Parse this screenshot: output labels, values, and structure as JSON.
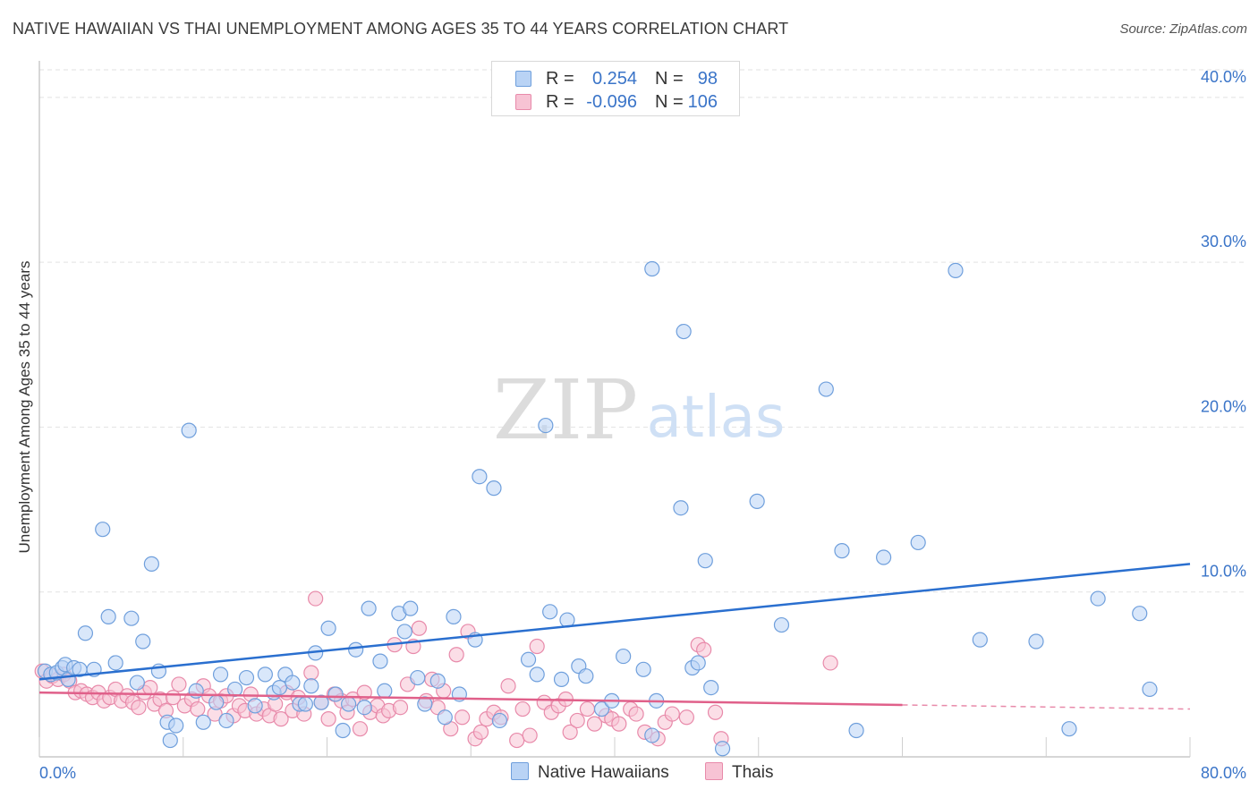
{
  "title": "NATIVE HAWAIIAN VS THAI UNEMPLOYMENT AMONG AGES 35 TO 44 YEARS CORRELATION CHART",
  "source": "Source: ZipAtlas.com",
  "watermark": {
    "part1": "ZIP",
    "part2": "atlas"
  },
  "colors": {
    "blue_fill": "#b9d3f5",
    "blue_stroke": "#6f9fdc",
    "blue_line": "#2a6fcf",
    "pink_fill": "#f7c3d4",
    "pink_stroke": "#e88aaa",
    "pink_line": "#e0608a",
    "axis_label": "#3a74c8",
    "grid": "#e2e2e2"
  },
  "legend_top": {
    "rows": [
      {
        "r_label": "R =",
        "r_value": "0.254",
        "n_label": "N =",
        "n_value": "98"
      },
      {
        "r_label": "R =",
        "r_value": "-0.096",
        "n_label": "N =",
        "n_value": "106"
      }
    ]
  },
  "legend_bottom": {
    "items": [
      "Native Hawaiians",
      "Thais"
    ]
  },
  "chart_data": {
    "type": "scatter",
    "title": "NATIVE HAWAIIAN VS THAI UNEMPLOYMENT AMONG AGES 35 TO 44 YEARS CORRELATION CHART",
    "xlabel": "",
    "ylabel": "Unemployment Among Ages 35 to 44 years",
    "xlim": [
      0,
      80
    ],
    "ylim": [
      0,
      42
    ],
    "x_tick_labels": [
      "0.0%",
      "80.0%"
    ],
    "y_ticks": [
      10,
      20,
      30,
      40
    ],
    "y_tick_labels": [
      "10.0%",
      "20.0%",
      "30.0%",
      "40.0%"
    ],
    "grid": true,
    "legend_position": "bottom",
    "series": [
      {
        "name": "Native Hawaiians",
        "trend": {
          "x": [
            0,
            80
          ],
          "y": [
            4.7,
            11.7
          ]
        },
        "points": [
          [
            0.4,
            5.2
          ],
          [
            0.8,
            5.0
          ],
          [
            1.2,
            5.1
          ],
          [
            1.6,
            5.4
          ],
          [
            1.8,
            5.6
          ],
          [
            2.0,
            4.7
          ],
          [
            2.4,
            5.4
          ],
          [
            2.8,
            5.3
          ],
          [
            3.2,
            7.5
          ],
          [
            3.8,
            5.3
          ],
          [
            4.4,
            13.8
          ],
          [
            4.8,
            8.5
          ],
          [
            5.3,
            5.7
          ],
          [
            6.4,
            8.4
          ],
          [
            6.8,
            4.5
          ],
          [
            7.2,
            7.0
          ],
          [
            7.8,
            11.7
          ],
          [
            8.3,
            5.2
          ],
          [
            8.9,
            2.1
          ],
          [
            9.1,
            1.0
          ],
          [
            9.5,
            1.9
          ],
          [
            10.4,
            19.8
          ],
          [
            10.9,
            4.0
          ],
          [
            11.4,
            2.1
          ],
          [
            12.3,
            3.3
          ],
          [
            12.6,
            5.0
          ],
          [
            13.0,
            2.2
          ],
          [
            13.6,
            4.1
          ],
          [
            14.4,
            4.8
          ],
          [
            15.0,
            3.1
          ],
          [
            15.7,
            5.0
          ],
          [
            16.3,
            3.9
          ],
          [
            16.7,
            4.2
          ],
          [
            17.1,
            5.0
          ],
          [
            17.6,
            4.5
          ],
          [
            18.1,
            3.2
          ],
          [
            18.5,
            3.2
          ],
          [
            18.9,
            4.3
          ],
          [
            19.2,
            6.3
          ],
          [
            19.6,
            3.3
          ],
          [
            20.1,
            7.8
          ],
          [
            20.6,
            3.8
          ],
          [
            21.1,
            1.6
          ],
          [
            21.5,
            3.2
          ],
          [
            22.0,
            6.5
          ],
          [
            22.6,
            3.0
          ],
          [
            22.9,
            9.0
          ],
          [
            23.7,
            5.8
          ],
          [
            24.0,
            4.0
          ],
          [
            25.0,
            8.7
          ],
          [
            25.4,
            7.6
          ],
          [
            25.8,
            9.0
          ],
          [
            26.3,
            4.8
          ],
          [
            26.8,
            3.2
          ],
          [
            27.7,
            4.6
          ],
          [
            28.2,
            2.4
          ],
          [
            28.8,
            8.5
          ],
          [
            29.2,
            3.8
          ],
          [
            30.3,
            7.1
          ],
          [
            30.6,
            17.0
          ],
          [
            31.6,
            16.3
          ],
          [
            32.0,
            2.2
          ],
          [
            34.0,
            5.9
          ],
          [
            34.6,
            5.0
          ],
          [
            35.2,
            20.1
          ],
          [
            35.5,
            8.8
          ],
          [
            36.3,
            4.7
          ],
          [
            36.7,
            8.3
          ],
          [
            37.5,
            5.5
          ],
          [
            38.0,
            4.9
          ],
          [
            39.1,
            2.9
          ],
          [
            39.8,
            3.4
          ],
          [
            40.6,
            6.1
          ],
          [
            42.0,
            5.3
          ],
          [
            42.6,
            1.3
          ],
          [
            42.9,
            3.4
          ],
          [
            44.6,
            15.1
          ],
          [
            44.8,
            25.8
          ],
          [
            45.4,
            5.4
          ],
          [
            45.8,
            5.7
          ],
          [
            46.3,
            11.9
          ],
          [
            46.7,
            4.2
          ],
          [
            47.5,
            0.5
          ],
          [
            49.9,
            15.5
          ],
          [
            51.6,
            8.0
          ],
          [
            54.7,
            22.3
          ],
          [
            55.8,
            12.5
          ],
          [
            56.8,
            1.6
          ],
          [
            58.7,
            12.1
          ],
          [
            61.1,
            13.0
          ],
          [
            65.4,
            7.1
          ],
          [
            69.3,
            7.0
          ],
          [
            71.6,
            1.7
          ],
          [
            73.6,
            9.6
          ],
          [
            76.5,
            8.7
          ],
          [
            77.2,
            4.1
          ],
          [
            42.6,
            29.6
          ],
          [
            63.7,
            29.5
          ]
        ]
      },
      {
        "name": "Thais",
        "trend": {
          "x": [
            0,
            60,
            80
          ],
          "y": [
            3.9,
            3.15,
            2.9
          ]
        },
        "points": [
          [
            0.2,
            5.2
          ],
          [
            0.5,
            4.6
          ],
          [
            0.9,
            4.9
          ],
          [
            1.3,
            4.7
          ],
          [
            1.7,
            5.0
          ],
          [
            2.1,
            4.6
          ],
          [
            2.5,
            3.9
          ],
          [
            2.9,
            4.0
          ],
          [
            3.3,
            3.8
          ],
          [
            3.7,
            3.6
          ],
          [
            4.1,
            3.9
          ],
          [
            4.5,
            3.4
          ],
          [
            4.9,
            3.6
          ],
          [
            5.3,
            4.1
          ],
          [
            5.7,
            3.4
          ],
          [
            6.1,
            3.7
          ],
          [
            6.5,
            3.3
          ],
          [
            6.9,
            3.0
          ],
          [
            7.3,
            3.9
          ],
          [
            7.7,
            4.2
          ],
          [
            8.0,
            3.2
          ],
          [
            8.4,
            3.5
          ],
          [
            8.8,
            2.8
          ],
          [
            9.3,
            3.6
          ],
          [
            9.7,
            4.4
          ],
          [
            10.1,
            3.1
          ],
          [
            10.6,
            3.5
          ],
          [
            11.0,
            2.9
          ],
          [
            11.4,
            4.3
          ],
          [
            11.8,
            3.7
          ],
          [
            12.2,
            2.6
          ],
          [
            12.6,
            3.4
          ],
          [
            13.0,
            3.7
          ],
          [
            13.5,
            2.5
          ],
          [
            13.9,
            3.1
          ],
          [
            14.3,
            2.8
          ],
          [
            14.7,
            3.8
          ],
          [
            15.1,
            2.6
          ],
          [
            15.6,
            2.9
          ],
          [
            16.0,
            2.5
          ],
          [
            16.4,
            3.2
          ],
          [
            16.8,
            2.3
          ],
          [
            17.2,
            3.9
          ],
          [
            17.6,
            2.8
          ],
          [
            18.0,
            3.6
          ],
          [
            18.4,
            2.6
          ],
          [
            18.9,
            5.1
          ],
          [
            19.2,
            9.6
          ],
          [
            19.6,
            3.3
          ],
          [
            20.1,
            2.3
          ],
          [
            20.5,
            3.8
          ],
          [
            21.0,
            3.4
          ],
          [
            21.4,
            2.7
          ],
          [
            21.8,
            3.5
          ],
          [
            22.3,
            1.7
          ],
          [
            22.6,
            3.9
          ],
          [
            23.0,
            2.7
          ],
          [
            23.5,
            3.1
          ],
          [
            23.9,
            2.5
          ],
          [
            24.3,
            2.8
          ],
          [
            24.7,
            6.8
          ],
          [
            25.1,
            3.0
          ],
          [
            25.6,
            4.4
          ],
          [
            26.0,
            6.7
          ],
          [
            26.4,
            7.8
          ],
          [
            26.9,
            3.4
          ],
          [
            27.3,
            4.7
          ],
          [
            27.7,
            3.0
          ],
          [
            28.1,
            4.0
          ],
          [
            28.6,
            1.7
          ],
          [
            29.0,
            6.2
          ],
          [
            29.4,
            2.4
          ],
          [
            29.8,
            7.6
          ],
          [
            30.3,
            1.1
          ],
          [
            30.7,
            1.5
          ],
          [
            31.1,
            2.3
          ],
          [
            31.6,
            2.7
          ],
          [
            32.1,
            2.4
          ],
          [
            32.6,
            4.3
          ],
          [
            33.2,
            1.0
          ],
          [
            33.6,
            2.9
          ],
          [
            34.1,
            1.3
          ],
          [
            34.6,
            6.7
          ],
          [
            35.1,
            3.3
          ],
          [
            35.6,
            2.7
          ],
          [
            36.1,
            3.1
          ],
          [
            36.6,
            3.5
          ],
          [
            36.9,
            1.5
          ],
          [
            37.4,
            2.2
          ],
          [
            38.1,
            2.9
          ],
          [
            38.6,
            2.0
          ],
          [
            39.4,
            2.5
          ],
          [
            39.8,
            2.3
          ],
          [
            40.3,
            2.0
          ],
          [
            41.1,
            2.9
          ],
          [
            41.5,
            2.6
          ],
          [
            42.1,
            1.5
          ],
          [
            43.0,
            1.1
          ],
          [
            43.5,
            2.1
          ],
          [
            44.0,
            2.6
          ],
          [
            45.0,
            2.4
          ],
          [
            45.8,
            6.8
          ],
          [
            46.2,
            6.5
          ],
          [
            47.0,
            2.7
          ],
          [
            47.4,
            1.1
          ],
          [
            55.0,
            5.7
          ]
        ]
      }
    ]
  }
}
